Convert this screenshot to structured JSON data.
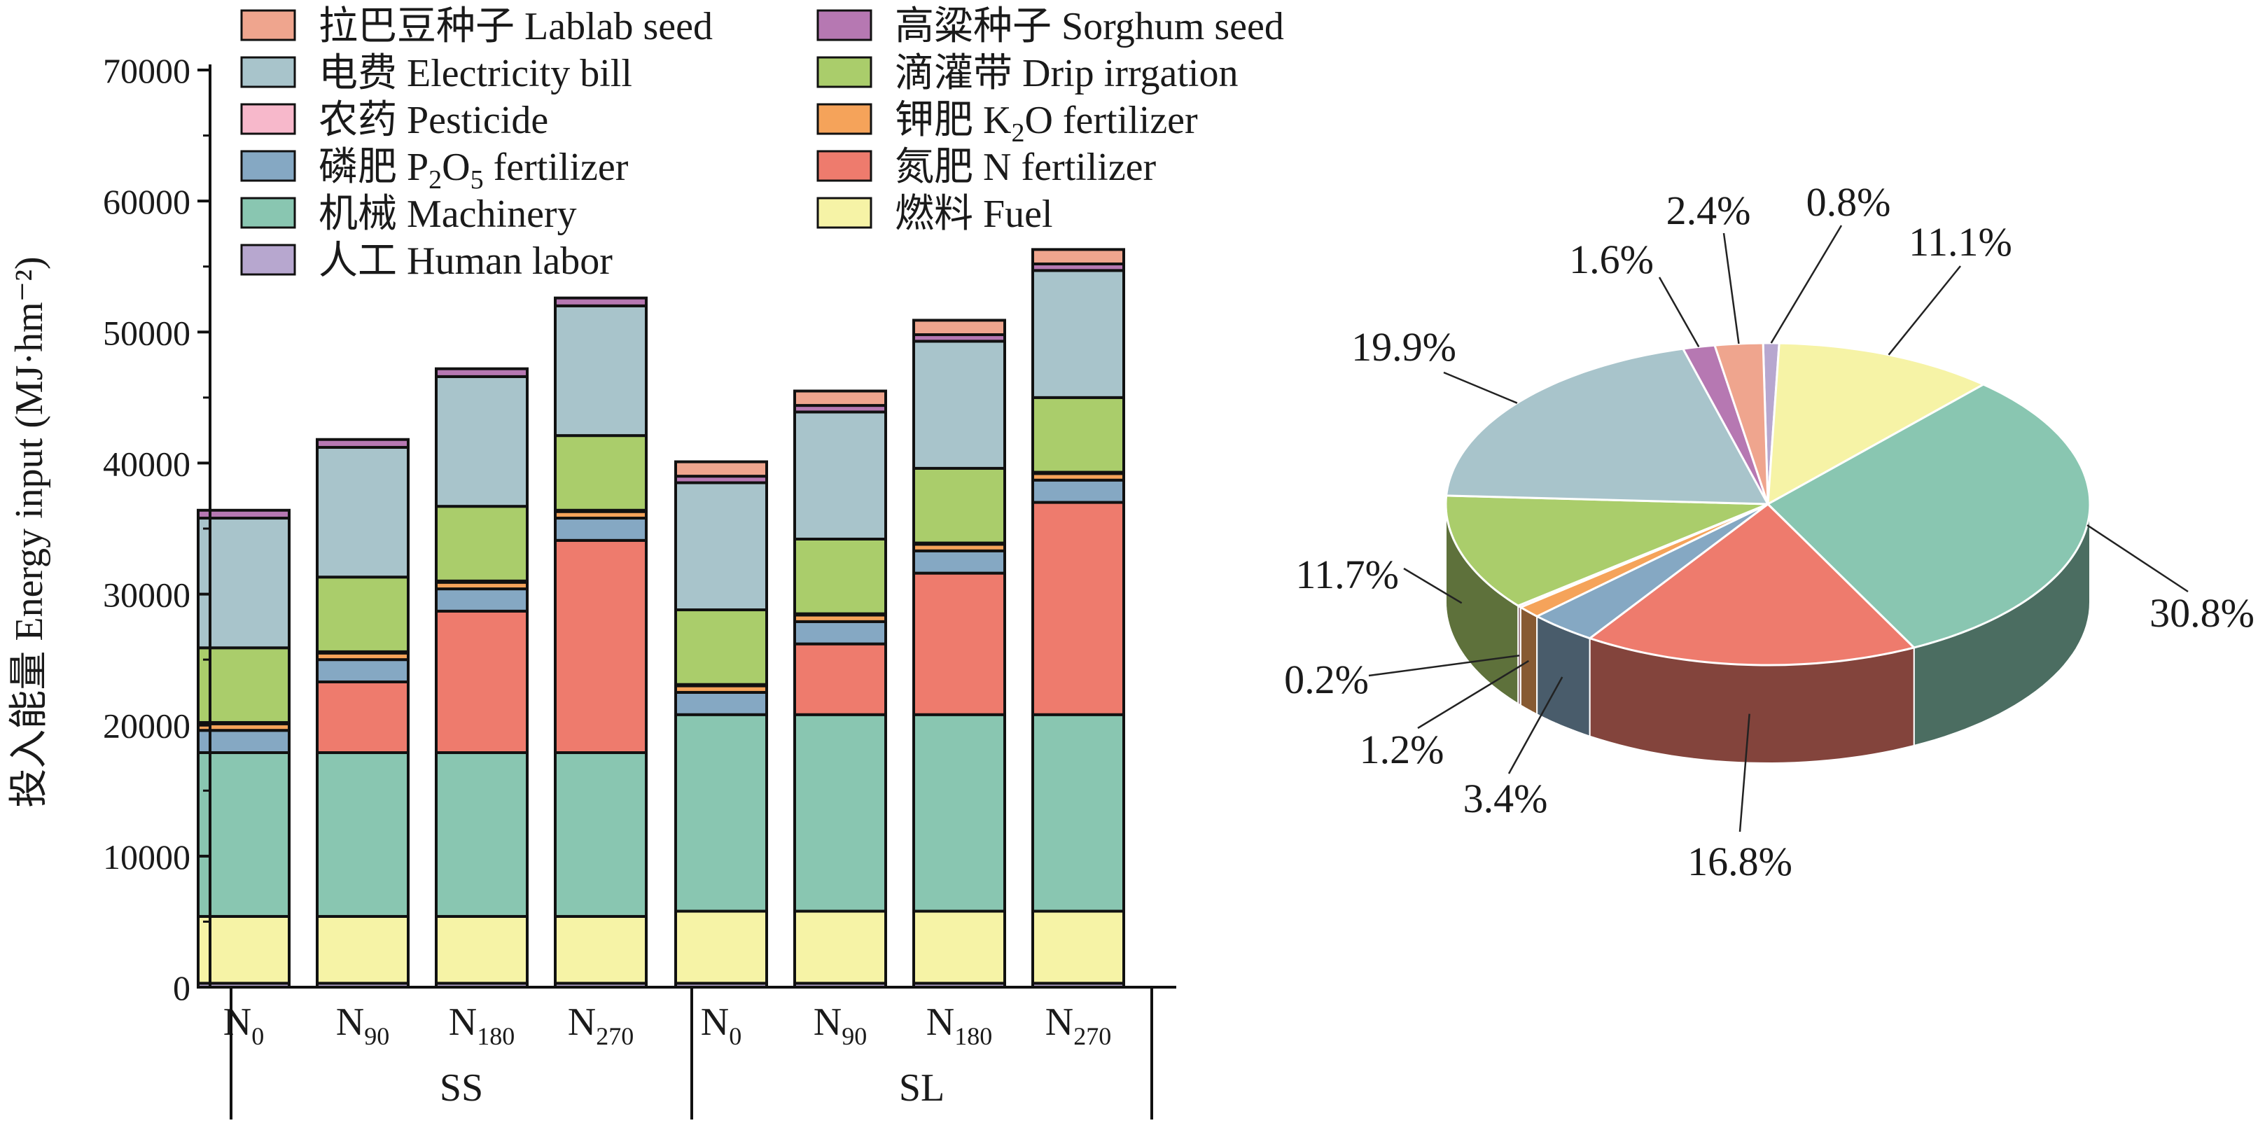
{
  "chart_data": [
    {
      "type": "bar",
      "stacked": true,
      "ylabel": "投入能量 Energy input (MJ·hm⁻²)",
      "ylim": [
        0,
        70000
      ],
      "yticks": [
        0,
        10000,
        20000,
        30000,
        40000,
        50000,
        60000,
        70000
      ],
      "ytick_labels": [
        "0",
        "10000",
        "20000",
        "30000",
        "40000",
        "50000",
        "60000",
        "70000"
      ],
      "legend_placement": "top-left",
      "categories": [
        {
          "base": "N",
          "sub": "0"
        },
        {
          "base": "N",
          "sub": "90"
        },
        {
          "base": "N",
          "sub": "180"
        },
        {
          "base": "N",
          "sub": "270"
        },
        {
          "base": "N",
          "sub": "0"
        },
        {
          "base": "N",
          "sub": "90"
        },
        {
          "base": "N",
          "sub": "180"
        },
        {
          "base": "N",
          "sub": "270"
        }
      ],
      "groups": [
        {
          "label": "SS",
          "members": [
            0,
            1,
            2,
            3
          ]
        },
        {
          "label": "SL",
          "members": [
            4,
            5,
            6,
            7
          ]
        }
      ],
      "series": [
        {
          "key": "human",
          "zh": "人工",
          "name": "Human labor",
          "color": "#b7a7cf",
          "values": [
            300,
            300,
            300,
            300,
            300,
            300,
            300,
            300
          ]
        },
        {
          "key": "fuel",
          "zh": "燃料",
          "name": "Fuel",
          "color": "#f6f3a6",
          "values": [
            5100,
            5100,
            5100,
            5100,
            5500,
            5500,
            5500,
            5500
          ]
        },
        {
          "key": "machinery",
          "zh": "机械",
          "name": "Machinery",
          "color": "#89c6b1",
          "values": [
            12500,
            12500,
            12500,
            12500,
            15000,
            15000,
            15000,
            15000
          ]
        },
        {
          "key": "nfert",
          "zh": "氮肥",
          "name": "N fertilizer",
          "color": "#ee7b6d",
          "values": [
            0,
            5400,
            10800,
            16200,
            0,
            5400,
            10800,
            16200
          ]
        },
        {
          "key": "p2o5",
          "zh": "磷肥",
          "sub": "2",
          "sub2": "5",
          "name": "fertilizer",
          "color": "#85a8c3",
          "values": [
            1700,
            1700,
            1700,
            1700,
            1700,
            1700,
            1700,
            1700
          ]
        },
        {
          "key": "k2o",
          "zh": "钾肥",
          "sub": "2",
          "name": "fertilizer",
          "color": "#f5a35a",
          "values": [
            500,
            500,
            500,
            500,
            500,
            500,
            500,
            500
          ]
        },
        {
          "key": "pesticide",
          "zh": "农药",
          "name": "Pesticide",
          "color": "#f7b8cb",
          "values": [
            100,
            100,
            100,
            100,
            100,
            100,
            100,
            100
          ]
        },
        {
          "key": "drip",
          "zh": "滴灌带",
          "name": "Drip irrgation",
          "color": "#aacd6b",
          "values": [
            5700,
            5700,
            5700,
            5700,
            5700,
            5700,
            5700,
            5700
          ]
        },
        {
          "key": "elec",
          "zh": "电费",
          "name": "Electricity bill",
          "color": "#a8c4cb",
          "values": [
            9900,
            9900,
            9900,
            9900,
            9700,
            9700,
            9700,
            9700
          ]
        },
        {
          "key": "sorghum",
          "zh": "高粱种子",
          "name": "Sorghum seed",
          "color": "#b678b2",
          "values": [
            600,
            600,
            600,
            600,
            500,
            500,
            500,
            500
          ]
        },
        {
          "key": "lablab",
          "zh": "拉巴豆种子",
          "name": "Lablab seed",
          "color": "#efa58e",
          "values": [
            0,
            0,
            0,
            0,
            1100,
            1100,
            1100,
            1100
          ]
        }
      ],
      "legend_order": [
        "lablab",
        "sorghum",
        "elec",
        "drip",
        "pesticide",
        "k2o",
        "p2o5",
        "nfert",
        "machinery",
        "fuel",
        "human"
      ]
    },
    {
      "type": "pie",
      "slices": [
        {
          "key": "human",
          "value": 0.8,
          "label": "0.8%",
          "color": "#b7a7cf"
        },
        {
          "key": "fuel",
          "value": 11.1,
          "label": "11.1%",
          "color": "#f6f3a6"
        },
        {
          "key": "machinery",
          "value": 30.8,
          "label": "30.8%",
          "color": "#89c6b1"
        },
        {
          "key": "nfert",
          "value": 16.8,
          "label": "16.8%",
          "color": "#ee7b6d"
        },
        {
          "key": "p2o5",
          "value": 3.4,
          "label": "3.4%",
          "color": "#85a8c3"
        },
        {
          "key": "k2o",
          "value": 1.2,
          "label": "1.2%",
          "color": "#f5a35a"
        },
        {
          "key": "pesticide",
          "value": 0.2,
          "label": "0.2%",
          "color": "#f7b8cb"
        },
        {
          "key": "drip",
          "value": 11.7,
          "label": "11.7%",
          "color": "#aacd6b"
        },
        {
          "key": "elec",
          "value": 19.9,
          "label": "19.9%",
          "color": "#a8c4cb"
        },
        {
          "key": "sorghum",
          "value": 1.6,
          "label": "1.6%",
          "color": "#b678b2"
        },
        {
          "key": "lablab",
          "value": 2.4,
          "label": "2.4%",
          "color": "#efa58e"
        }
      ]
    }
  ]
}
